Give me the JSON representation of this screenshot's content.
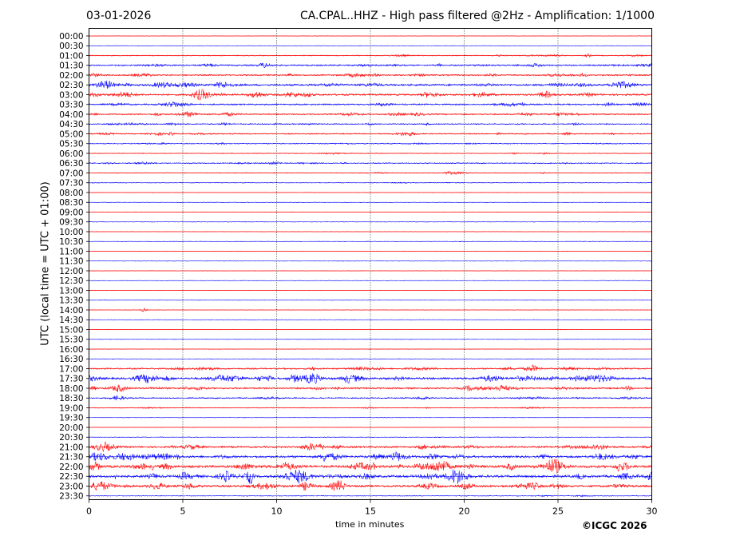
{
  "header": {
    "date": "03-01-2026",
    "title": "CA.CPAL..HHZ - High pass filtered @2Hz - Amplification: 1/1000"
  },
  "footer": {
    "copyright": "©ICGC 2026"
  },
  "chart_data": {
    "type": "line",
    "title": "CA.CPAL..HHZ - High pass filtered @2Hz - Amplification: 1/1000",
    "xlabel": "time in minutes",
    "ylabel": "UTC (local time = UTC + 01:00)",
    "xlim": [
      0,
      30
    ],
    "xticks": [
      0,
      5,
      10,
      15,
      20,
      25,
      30
    ],
    "vertical_gridlines": [
      5,
      10,
      15,
      20,
      25
    ],
    "grid": "dotted vertical",
    "row_labels": [
      "00:00",
      "00:30",
      "01:00",
      "01:30",
      "02:00",
      "02:30",
      "03:00",
      "03:30",
      "04:00",
      "04:30",
      "05:00",
      "05:30",
      "06:00",
      "06:30",
      "07:00",
      "07:30",
      "08:00",
      "08:30",
      "09:00",
      "09:30",
      "10:00",
      "10:30",
      "11:00",
      "11:30",
      "12:00",
      "12:30",
      "13:00",
      "13:30",
      "14:00",
      "14:30",
      "15:00",
      "15:30",
      "16:00",
      "16:30",
      "17:00",
      "17:30",
      "18:00",
      "18:30",
      "19:00",
      "19:30",
      "20:00",
      "20:30",
      "21:00",
      "21:30",
      "22:00",
      "22:30",
      "23:00",
      "23:30"
    ],
    "trace_colors": [
      "#ff0000",
      "#0000ff"
    ],
    "trace_activity": [
      0.02,
      0.02,
      0.25,
      0.45,
      0.45,
      0.7,
      0.65,
      0.5,
      0.45,
      0.35,
      0.35,
      0.25,
      0.2,
      0.3,
      0.2,
      0.1,
      0.05,
      0.02,
      0.02,
      0.03,
      0.03,
      0.04,
      0.02,
      0.02,
      0.02,
      0.02,
      0.02,
      0.02,
      0.02,
      0.02,
      0.02,
      0.02,
      0.02,
      0.03,
      0.5,
      0.85,
      0.6,
      0.35,
      0.2,
      0.03,
      0.03,
      0.1,
      0.65,
      0.85,
      1.0,
      1.0,
      0.8,
      0.15
    ],
    "events": [
      {
        "row": "01:00",
        "minute": 26.6,
        "amplitude": 0.5
      },
      {
        "row": "05:00",
        "minute": 4.4,
        "amplitude": 0.5
      },
      {
        "row": "14:00",
        "minute": 2.9,
        "amplitude": 0.6
      },
      {
        "row": "22:30",
        "minute": 8.6,
        "amplitude": 2.2
      },
      {
        "row": "22:00",
        "minute": 28.2,
        "amplitude": 1.2
      }
    ]
  }
}
